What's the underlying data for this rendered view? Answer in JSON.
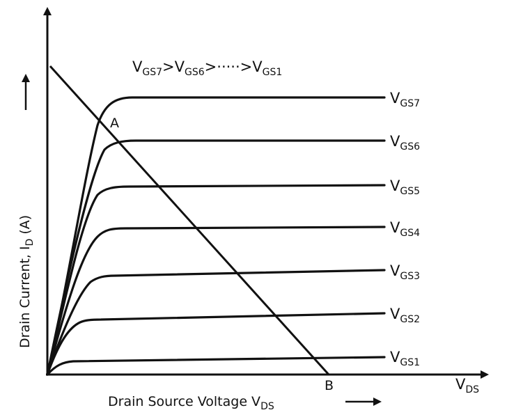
{
  "header": {
    "inequality_parts": [
      "V",
      "GS7",
      ">V",
      "GS6",
      ">",
      "·····",
      ">V",
      "GS1"
    ]
  },
  "axes": {
    "x_label": "Drain Source Voltage V",
    "x_label_sub": "DS",
    "y_label": "Drain Current, I",
    "y_label_sub": "D",
    "y_label_unit": " (A)",
    "x_end_label": "V",
    "x_end_sub": "DS"
  },
  "curves": [
    {
      "name": "V",
      "sub": "GS7",
      "level": 7
    },
    {
      "name": "V",
      "sub": "GS6",
      "level": 6
    },
    {
      "name": "V",
      "sub": "GS5",
      "level": 5
    },
    {
      "name": "V",
      "sub": "GS4",
      "level": 4
    },
    {
      "name": "V",
      "sub": "GS3",
      "level": 3
    },
    {
      "name": "V",
      "sub": "GS2",
      "level": 2
    },
    {
      "name": "V",
      "sub": "GS1",
      "level": 1
    }
  ],
  "points": {
    "a": "A",
    "b": "B"
  }
}
